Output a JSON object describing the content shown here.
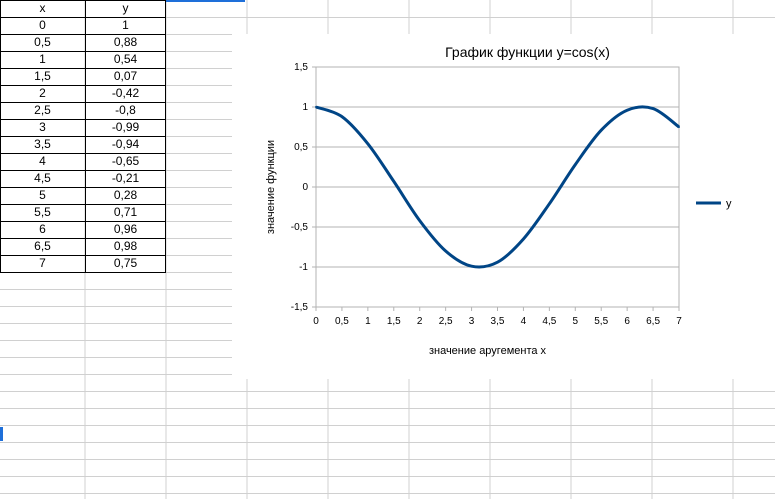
{
  "sheet": {
    "headers": {
      "x": "x",
      "y": "y"
    },
    "rows": [
      {
        "x": "0",
        "y": "1"
      },
      {
        "x": "0,5",
        "y": "0,88"
      },
      {
        "x": "1",
        "y": "0,54"
      },
      {
        "x": "1,5",
        "y": "0,07"
      },
      {
        "x": "2",
        "y": "-0,42"
      },
      {
        "x": "2,5",
        "y": "-0,8"
      },
      {
        "x": "3",
        "y": "-0,99"
      },
      {
        "x": "3,5",
        "y": "-0,94"
      },
      {
        "x": "4",
        "y": "-0,65"
      },
      {
        "x": "4,5",
        "y": "-0,21"
      },
      {
        "x": "5",
        "y": "0,28"
      },
      {
        "x": "5,5",
        "y": "0,71"
      },
      {
        "x": "6",
        "y": "0,96"
      },
      {
        "x": "6,5",
        "y": "0,98"
      },
      {
        "x": "7",
        "y": "0,75"
      }
    ]
  },
  "chart_data": {
    "type": "line",
    "title": "График функции y=cos(x)",
    "xlabel": "значение аругемента x",
    "ylabel": "значение функции",
    "xlim": [
      0,
      7
    ],
    "ylim": [
      -1.5,
      1.5
    ],
    "x_ticks": [
      "0",
      "0,5",
      "1",
      "1,5",
      "2",
      "2,5",
      "3",
      "3,5",
      "4",
      "4,5",
      "5",
      "5,5",
      "6",
      "6,5",
      "7"
    ],
    "y_ticks": [
      "1,5",
      "1",
      "0,5",
      "0",
      "-0,5",
      "-1",
      "-1,5"
    ],
    "grid": "horizontal",
    "legend_position": "right",
    "series": [
      {
        "name": "y",
        "color": "#004586",
        "x": [
          0,
          0.5,
          1,
          1.5,
          2,
          2.5,
          3,
          3.5,
          4,
          4.5,
          5,
          5.5,
          6,
          6.5,
          7
        ],
        "y": [
          1,
          0.88,
          0.54,
          0.07,
          -0.42,
          -0.8,
          -0.99,
          -0.94,
          -0.65,
          -0.21,
          0.28,
          0.71,
          0.96,
          0.98,
          0.75
        ]
      }
    ]
  },
  "colors": {
    "grid_line": "#d0d0d0",
    "cell_border": "#000000",
    "series": "#004586",
    "selection": "#1e6fd9"
  }
}
